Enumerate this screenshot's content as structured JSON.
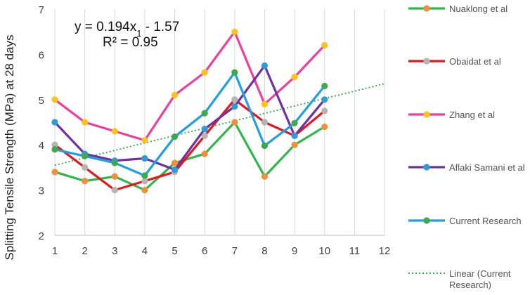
{
  "chart_data": {
    "type": "line",
    "title": "",
    "xlabel": "",
    "ylabel": "Splitting Tensile Strength (MPa) at 28 days",
    "x": [
      1,
      2,
      3,
      4,
      5,
      6,
      7,
      8,
      9,
      10
    ],
    "xlim": [
      1,
      12
    ],
    "xticks": [
      "1",
      "2",
      "3",
      "4",
      "5",
      "6",
      "7",
      "8",
      "9",
      "10",
      "11",
      "12"
    ],
    "ylim": [
      2,
      7
    ],
    "yticks": [
      "2",
      "3",
      "4",
      "5",
      "6",
      "7"
    ],
    "grid": "vertical",
    "legend_position": "right",
    "equation": {
      "line1_prefix": "y = 0.194x",
      "line1_sub": "1",
      "line1_suffix": " - 1.57",
      "line2": "R² = 0.95"
    },
    "series": [
      {
        "name": "Nuaklong et al",
        "color": "#2db84b",
        "marker_color": "#f0903a",
        "values": [
          3.4,
          3.2,
          3.3,
          3.0,
          3.6,
          3.8,
          4.5,
          3.3,
          4.0,
          4.4
        ]
      },
      {
        "name": "Obaidat et al",
        "color": "#e8161b",
        "marker_color": "#b4b4b4",
        "values": [
          4.0,
          3.5,
          3.0,
          3.2,
          3.4,
          4.2,
          5.0,
          4.5,
          4.2,
          4.75
        ]
      },
      {
        "name": "Zhang et al",
        "color": "#ef3f9b",
        "marker_color": "#ffc21a",
        "values": [
          5.0,
          4.5,
          4.3,
          4.1,
          5.1,
          5.6,
          6.5,
          4.9,
          5.5,
          6.2
        ]
      },
      {
        "name": "Aflaki Samani et al",
        "color": "#7030a0",
        "marker_color": "#2e9bdc",
        "values": [
          4.5,
          3.8,
          3.65,
          3.7,
          3.45,
          4.35,
          4.85,
          5.75,
          4.2,
          5.0
        ]
      },
      {
        "name": "Current Research",
        "color": "#1ea0e6",
        "marker_color": "#3eaa4b",
        "values": [
          3.9,
          3.75,
          3.6,
          3.32,
          4.18,
          4.7,
          5.6,
          3.98,
          4.48,
          5.3
        ]
      }
    ],
    "trendline": {
      "name": "Linear (Current Research)",
      "color": "#3cb34a",
      "y_at_x_min": 3.55,
      "y_at_x_max": 5.35
    }
  }
}
